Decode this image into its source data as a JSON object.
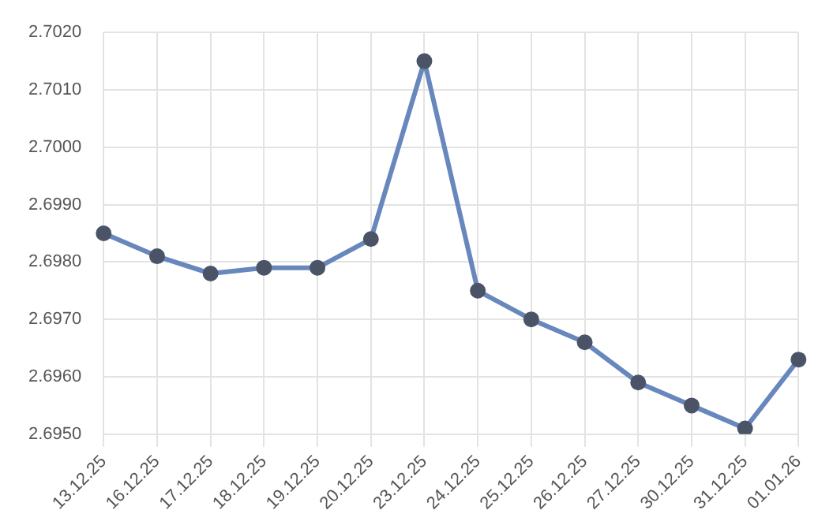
{
  "chart_data": {
    "type": "line",
    "categories": [
      "13.12.25",
      "16.12.25",
      "17.12.25",
      "18.12.25",
      "19.12.25",
      "20.12.25",
      "23.12.25",
      "24.12.25",
      "25.12.25",
      "26.12.25",
      "27.12.25",
      "30.12.25",
      "31.12.25",
      "01.01.26"
    ],
    "series": [
      {
        "color": "#6787bd",
        "values": [
          2.6985,
          2.6981,
          2.6978,
          2.6979,
          2.6979,
          2.6984,
          2.7015,
          2.6975,
          2.697,
          2.6966,
          2.6959,
          2.6955,
          2.6951,
          2.6963
        ]
      }
    ],
    "ylim": [
      2.695,
      2.702
    ],
    "yticks": [
      {
        "value": 2.695,
        "label": "2.6950"
      },
      {
        "value": 2.696,
        "label": "2.6960"
      },
      {
        "value": 2.697,
        "label": "2.6970"
      },
      {
        "value": 2.698,
        "label": "2.6980"
      },
      {
        "value": 2.699,
        "label": "2.6990"
      },
      {
        "value": 2.7,
        "label": "2.7000"
      },
      {
        "value": 2.701,
        "label": "2.7010"
      },
      {
        "value": 2.702,
        "label": "2.7020"
      }
    ],
    "grid": true,
    "marker": "circle",
    "legend": false
  }
}
